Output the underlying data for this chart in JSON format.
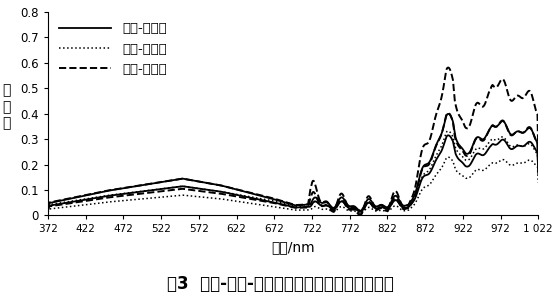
{
  "xlabel": "波长/nm",
  "ylabel": "反\n射\n率",
  "xlim": [
    372,
    1022
  ],
  "ylim": [
    0,
    0.8
  ],
  "xticks": [
    372,
    422,
    472,
    522,
    572,
    622,
    672,
    722,
    772,
    822,
    872,
    922,
    972,
    1022
  ],
  "xticklabels": [
    "372",
    "422",
    "472",
    "522",
    "572",
    "622",
    "672",
    "722",
    "772",
    "822",
    "872",
    "922",
    "972",
    "1 022"
  ],
  "yticks": [
    0,
    0.1,
    0.2,
    0.3,
    0.4,
    0.5,
    0.6,
    0.7,
    0.8
  ],
  "legend_labels": [
    "冷蒿-上下限",
    "苔草-上下限",
    "羊草-上下限"
  ],
  "caption": "图3  冷蒿-苔草-羊草原始光谱曲线的置信区间带"
}
